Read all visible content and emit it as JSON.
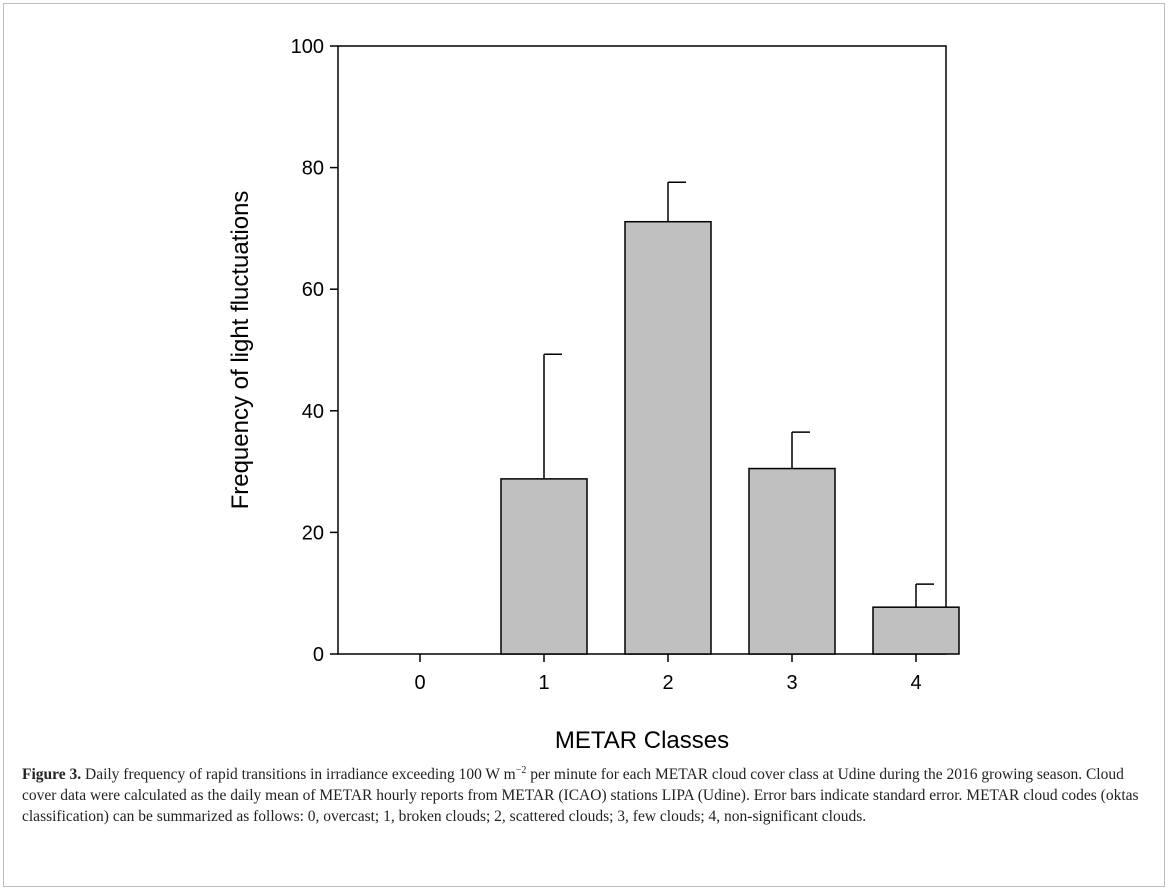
{
  "chart_data": {
    "type": "bar",
    "categories": [
      "0",
      "1",
      "2",
      "3",
      "4"
    ],
    "values": [
      0,
      28.8,
      71.1,
      30.5,
      7.7
    ],
    "errors": [
      0,
      20.5,
      6.5,
      6.0,
      3.8
    ],
    "color": "#c0c0c0",
    "xlabel": "METAR Classes",
    "ylabel": "Frequency of light fluctuations",
    "ylim": [
      0,
      100
    ],
    "yticks": [
      0,
      20,
      40,
      60,
      80,
      100
    ],
    "grid": false
  },
  "caption": {
    "label": "Figure 3.",
    "text_before": "Daily frequency of rapid transitions in irradiance exceeding 100 W m",
    "superscript": "−2",
    "text_after": "per minute for each METAR cloud cover class at Udine during the 2016 growing season. Cloud cover data were calculated as the daily mean of METAR hourly reports from METAR (ICAO) stations LIPA (Udine). Error bars indicate standard error. METAR cloud codes (oktas classification) can be summarized as follows: 0, overcast; 1, broken clouds; 2, scattered clouds; 3, few clouds; 4, non-significant clouds."
  }
}
